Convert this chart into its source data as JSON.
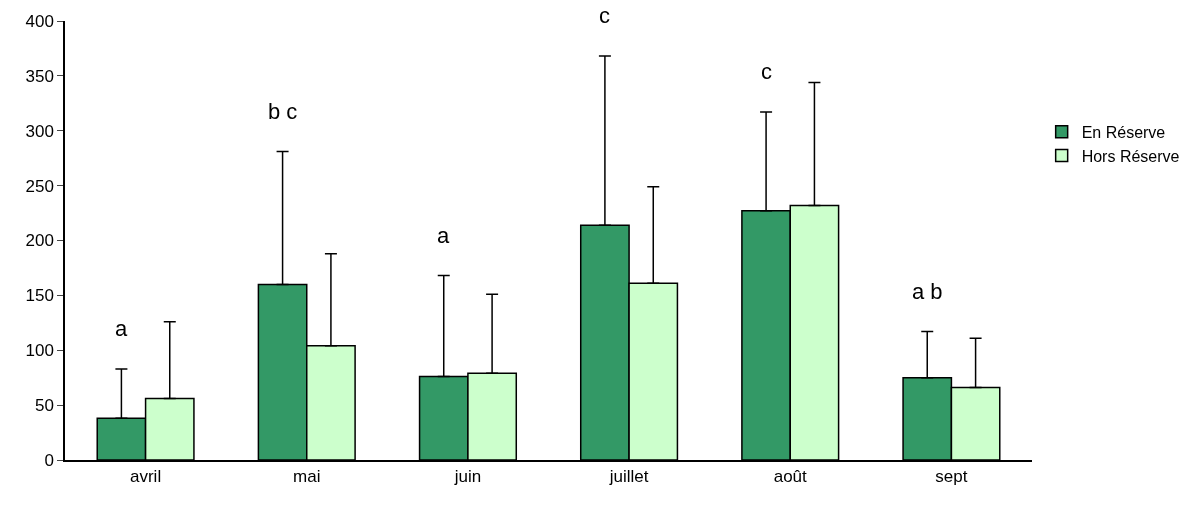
{
  "chart_data": {
    "type": "bar",
    "categories": [
      "avril",
      "mai",
      "juin",
      "juillet",
      "août",
      "sept"
    ],
    "series": [
      {
        "name": "En Réserve",
        "color": "#339966",
        "values": [
          38,
          160,
          76,
          214,
          227,
          75
        ],
        "errors": [
          [
            38,
            83
          ],
          [
            160,
            281
          ],
          [
            76,
            168
          ],
          [
            214,
            368
          ],
          [
            227,
            317
          ],
          [
            75,
            117
          ]
        ]
      },
      {
        "name": "Hors Réserve",
        "color": "#ccffcc",
        "values": [
          56,
          104,
          79,
          161,
          232,
          66
        ],
        "errors": [
          [
            56,
            126
          ],
          [
            104,
            188
          ],
          [
            79,
            151
          ],
          [
            161,
            249
          ],
          [
            232,
            344
          ],
          [
            66,
            111
          ]
        ]
      }
    ],
    "ylim": [
      0,
      400
    ],
    "yticks": [
      0,
      50,
      100,
      150,
      200,
      250,
      300,
      350,
      400
    ],
    "legend": "right",
    "annotations": [
      "a",
      "b c",
      "a",
      "c",
      "c",
      "a b"
    ]
  }
}
